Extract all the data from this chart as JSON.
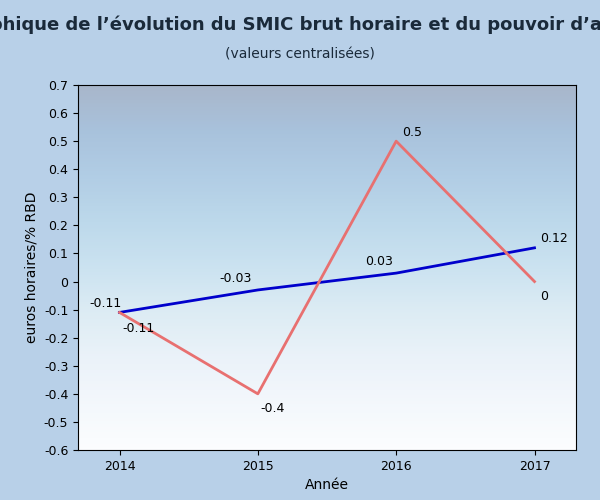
{
  "title": "Graphique de l’évolution du SMIC brut horaire et du pouvoir d’achat",
  "subtitle": "(valeurs centralisées)",
  "xlabel": "Année",
  "ylabel": "euros horaires/% RBD",
  "years": [
    2014,
    2015,
    2016,
    2017
  ],
  "blue_line": [
    -0.11,
    -0.03,
    0.03,
    0.12
  ],
  "red_line": [
    -0.11,
    -0.4,
    0.5,
    0
  ],
  "blue_color": "#0000CC",
  "red_color": "#E87070",
  "bg_outer": "#B8D0E8",
  "bg_plot_top": "#C8DDEF",
  "bg_plot_bottom": "#FFFFFF",
  "title_color": "#1A2A3A",
  "ylim": [
    -0.6,
    0.7
  ],
  "xlim": [
    2013.7,
    2017.3
  ],
  "yticks": [
    -0.6,
    -0.5,
    -0.4,
    -0.3,
    -0.2,
    -0.1,
    0.0,
    0.1,
    0.2,
    0.3,
    0.4,
    0.5,
    0.6,
    0.7
  ],
  "title_fontsize": 13,
  "subtitle_fontsize": 10,
  "label_fontsize": 10,
  "tick_fontsize": 9,
  "annotation_fontsize": 9,
  "line_width": 2.0
}
